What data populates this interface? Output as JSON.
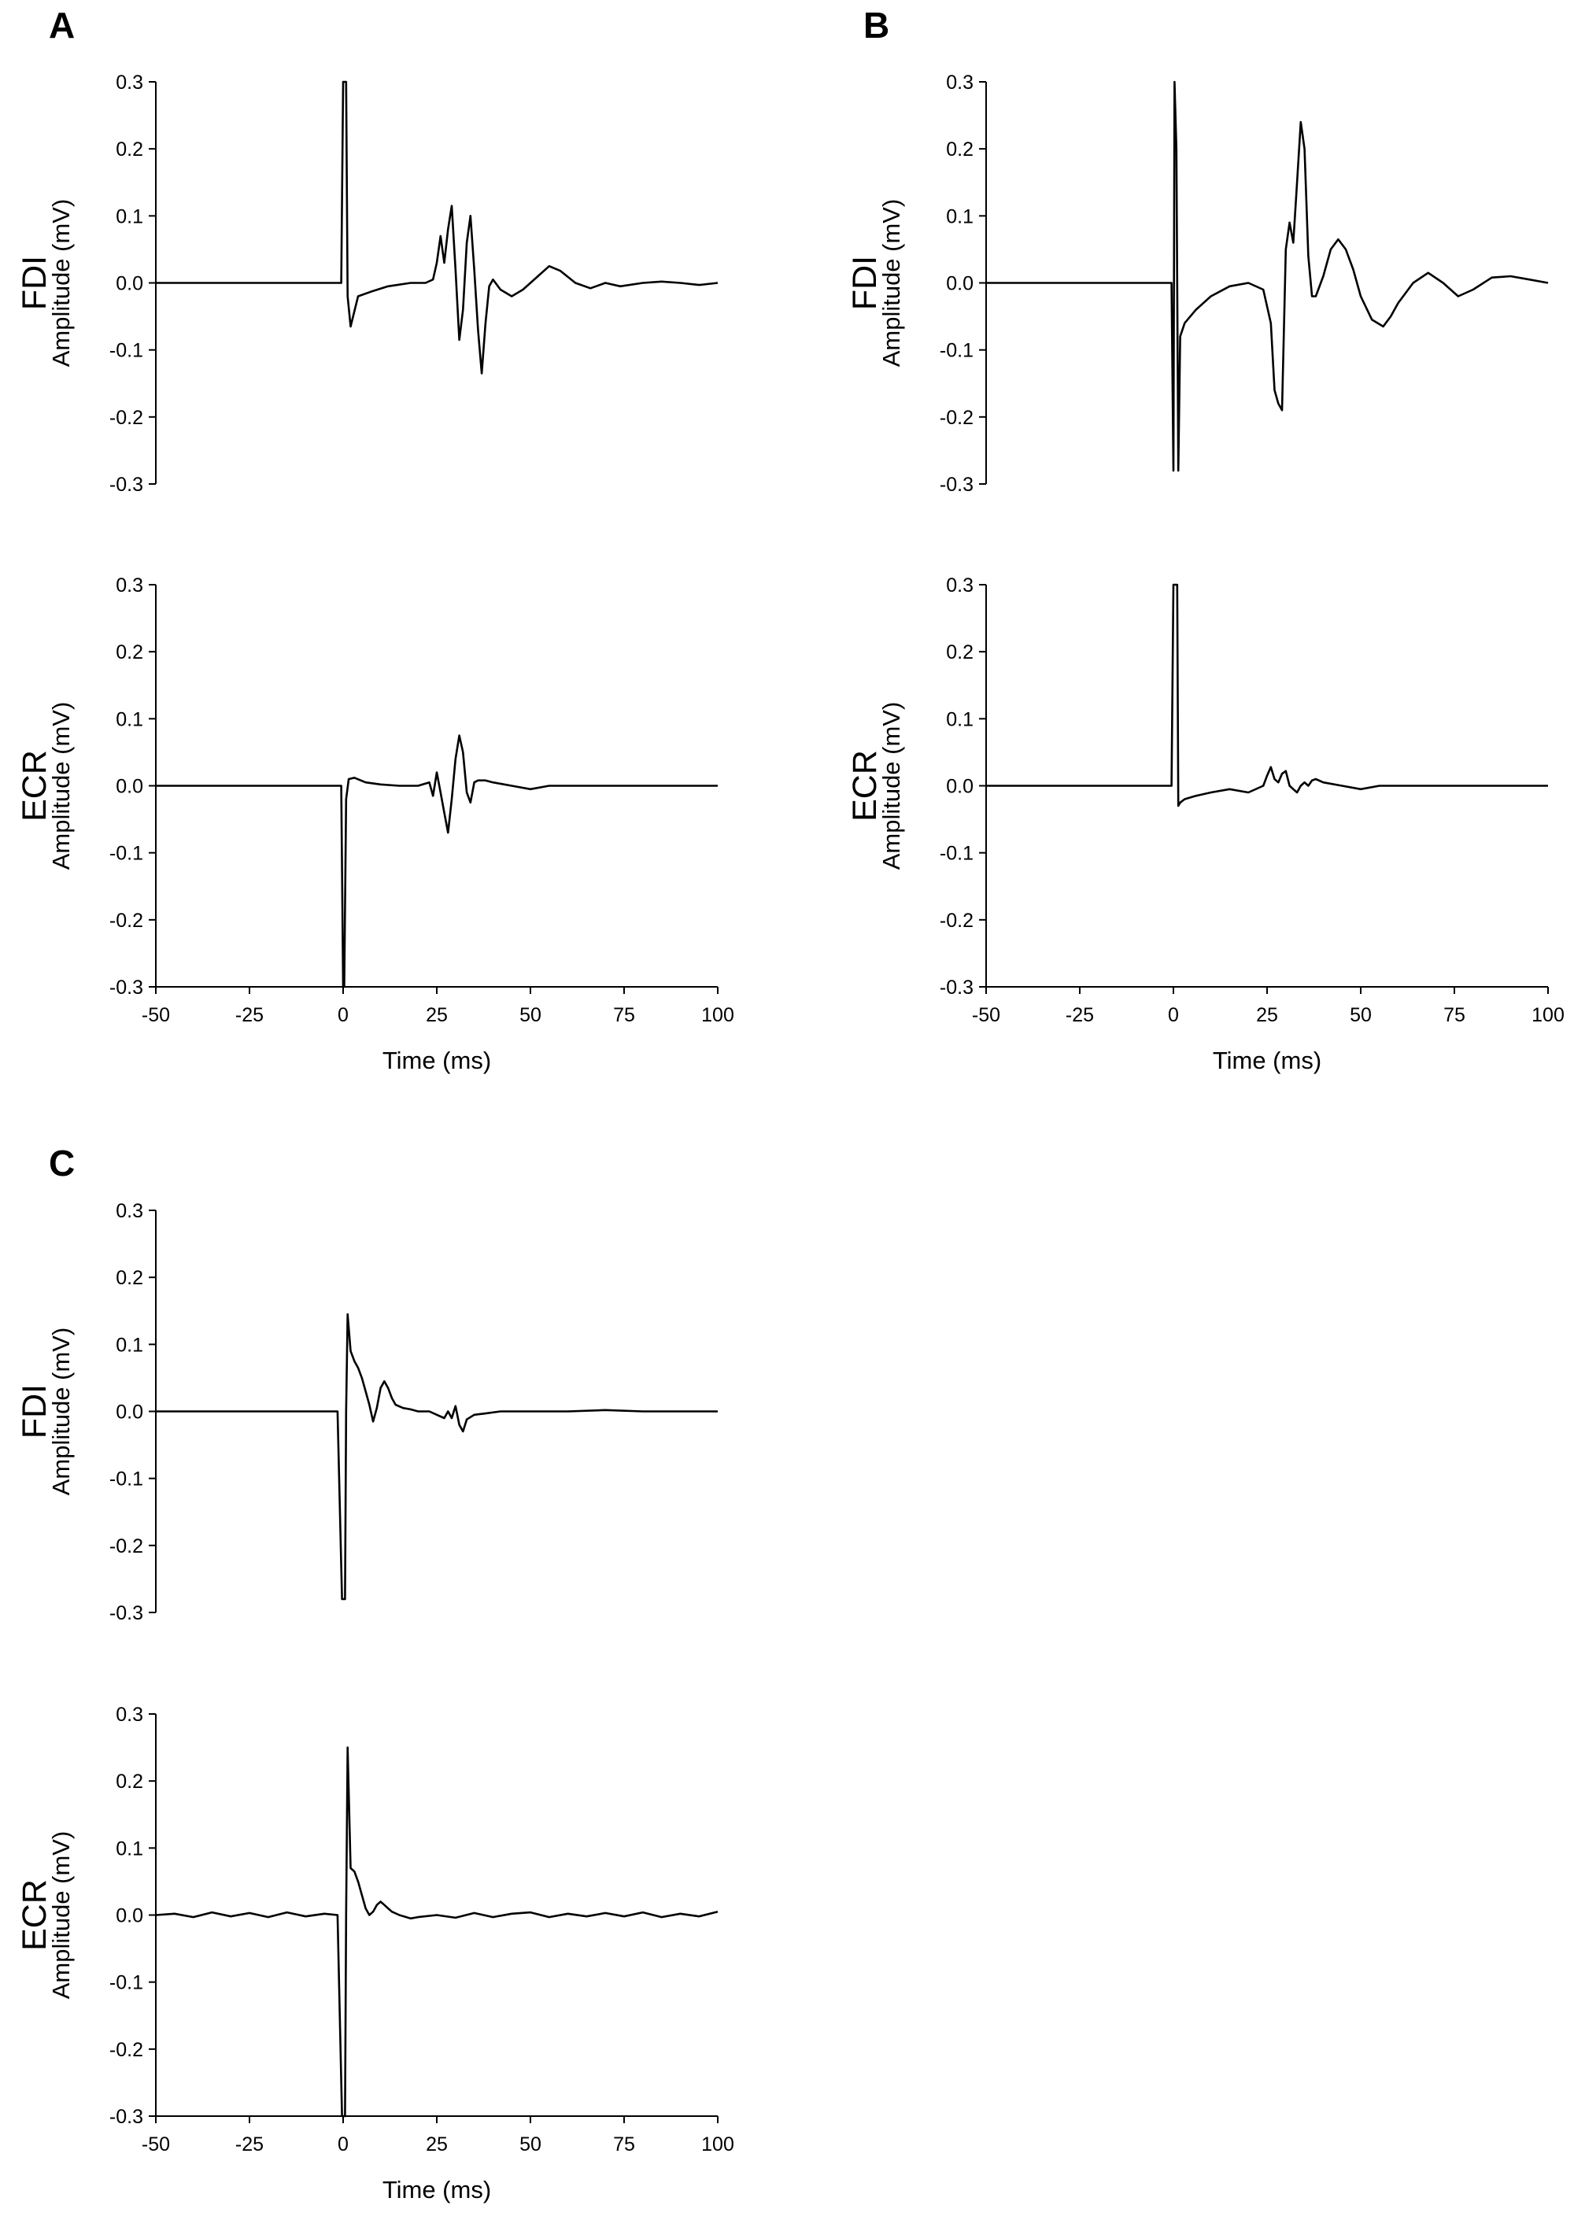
{
  "chart_data": [
    {
      "panel": "A",
      "muscle": "FDI",
      "type": "line",
      "ylabel": "Amplitude (mV)",
      "xlabel": "",
      "xlim": [
        -50,
        100
      ],
      "ylim": [
        -0.3,
        0.3
      ],
      "yticks": [
        "0.3",
        "0.2",
        "0.1",
        "0.0",
        "-0.1",
        "-0.2",
        "-0.3"
      ],
      "xticks": [],
      "x": [
        -50,
        -40,
        -30,
        -20,
        -10,
        -2,
        -0.5,
        0,
        0.3,
        0.8,
        1.2,
        2,
        4,
        8,
        12,
        18,
        22,
        24,
        25,
        26,
        27,
        28,
        29,
        30,
        31,
        32,
        33,
        34,
        35,
        36,
        37,
        38,
        39,
        40,
        42,
        45,
        48,
        52,
        55,
        58,
        62,
        66,
        70,
        74,
        80,
        85,
        90,
        95,
        100
      ],
      "y": [
        0.0,
        0.0,
        0.0,
        0.0,
        0.0,
        0.0,
        0.0,
        0.3,
        0.3,
        0.3,
        -0.02,
        -0.065,
        -0.02,
        -0.012,
        -0.005,
        0.0,
        0.0,
        0.005,
        0.03,
        0.07,
        0.03,
        0.08,
        0.115,
        0.02,
        -0.085,
        -0.04,
        0.06,
        0.1,
        0.02,
        -0.07,
        -0.135,
        -0.06,
        -0.005,
        0.005,
        -0.01,
        -0.02,
        -0.01,
        0.01,
        0.025,
        0.018,
        0.0,
        -0.008,
        0.0,
        -0.005,
        0.0,
        0.002,
        0.0,
        -0.003,
        0.0
      ]
    },
    {
      "panel": "A",
      "muscle": "ECR",
      "type": "line",
      "ylabel": "Amplitude (mV)",
      "xlabel": "Time (ms)",
      "xlim": [
        -50,
        100
      ],
      "ylim": [
        -0.3,
        0.3
      ],
      "yticks": [
        "0.3",
        "0.2",
        "0.1",
        "0.0",
        "-0.1",
        "-0.2",
        "-0.3"
      ],
      "xticks": [
        "-50",
        "-25",
        "0",
        "25",
        "50",
        "75",
        "100"
      ],
      "x": [
        -50,
        -40,
        -30,
        -20,
        -10,
        -2,
        -0.5,
        0,
        0.3,
        0.8,
        1.5,
        3,
        6,
        10,
        15,
        20,
        23,
        24,
        25,
        26,
        27,
        28,
        29,
        30,
        31,
        32,
        33,
        34,
        35,
        36,
        38,
        40,
        45,
        50,
        55,
        60,
        70,
        80,
        90,
        100
      ],
      "y": [
        0.0,
        0.0,
        0.0,
        0.0,
        0.0,
        0.0,
        0.0,
        -0.3,
        -0.3,
        -0.02,
        0.01,
        0.012,
        0.005,
        0.002,
        0.0,
        0.0,
        0.005,
        -0.015,
        0.02,
        -0.01,
        -0.04,
        -0.07,
        -0.02,
        0.04,
        0.075,
        0.05,
        -0.01,
        -0.025,
        0.005,
        0.008,
        0.008,
        0.005,
        0.0,
        -0.005,
        0.0,
        0.0,
        0.0,
        0.0,
        0.0,
        0.0
      ]
    },
    {
      "panel": "B",
      "muscle": "FDI",
      "type": "line",
      "ylabel": "Amplitude (mV)",
      "xlabel": "",
      "xlim": [
        -50,
        100
      ],
      "ylim": [
        -0.3,
        0.3
      ],
      "yticks": [
        "0.3",
        "0.2",
        "0.1",
        "0.0",
        "-0.1",
        "-0.2",
        "-0.3"
      ],
      "xticks": [],
      "x": [
        -50,
        -40,
        -30,
        -20,
        -10,
        -2,
        -0.5,
        0,
        0.3,
        0.8,
        1.3,
        1.8,
        3,
        6,
        10,
        15,
        20,
        24,
        26,
        27,
        28,
        29,
        30,
        31,
        32,
        33,
        34,
        35,
        36,
        37,
        38,
        40,
        42,
        44,
        46,
        48,
        50,
        53,
        56,
        58,
        60,
        64,
        68,
        72,
        76,
        80,
        85,
        90,
        95,
        100
      ],
      "y": [
        0.0,
        0.0,
        0.0,
        0.0,
        0.0,
        0.0,
        0.0,
        -0.28,
        0.3,
        0.2,
        -0.28,
        -0.08,
        -0.06,
        -0.04,
        -0.02,
        -0.005,
        0.0,
        -0.01,
        -0.06,
        -0.16,
        -0.18,
        -0.19,
        0.05,
        0.09,
        0.06,
        0.15,
        0.24,
        0.2,
        0.04,
        -0.02,
        -0.02,
        0.01,
        0.05,
        0.065,
        0.05,
        0.02,
        -0.02,
        -0.055,
        -0.065,
        -0.05,
        -0.03,
        0.0,
        0.015,
        0.0,
        -0.02,
        -0.01,
        0.008,
        0.01,
        0.005,
        0.0
      ]
    },
    {
      "panel": "B",
      "muscle": "ECR",
      "type": "line",
      "ylabel": "Amplitude (mV)",
      "xlabel": "Time (ms)",
      "xlim": [
        -50,
        100
      ],
      "ylim": [
        -0.3,
        0.3
      ],
      "yticks": [
        "0.3",
        "0.2",
        "0.1",
        "0.0",
        "-0.1",
        "-0.2",
        "-0.3"
      ],
      "xticks": [
        "-50",
        "-25",
        "0",
        "25",
        "50",
        "75",
        "100"
      ],
      "x": [
        -50,
        -40,
        -30,
        -20,
        -10,
        -2,
        -0.5,
        0,
        0.5,
        1,
        1.3,
        1.8,
        3,
        6,
        10,
        15,
        20,
        24,
        25,
        26,
        27,
        28,
        29,
        30,
        31,
        32,
        33,
        34,
        35,
        36,
        37,
        38,
        40,
        45,
        50,
        55,
        60,
        70,
        80,
        90,
        100
      ],
      "y": [
        0.0,
        0.0,
        0.0,
        0.0,
        0.0,
        0.0,
        0.0,
        0.3,
        0.3,
        0.3,
        -0.03,
        -0.025,
        -0.02,
        -0.015,
        -0.01,
        -0.005,
        -0.01,
        0.0,
        0.015,
        0.028,
        0.01,
        0.005,
        0.018,
        0.022,
        0.0,
        -0.005,
        -0.01,
        0.0,
        0.005,
        0.0,
        0.008,
        0.01,
        0.005,
        0.0,
        -0.005,
        0.0,
        0.0,
        0.0,
        0.0,
        0.0,
        0.0
      ]
    },
    {
      "panel": "C",
      "muscle": "FDI",
      "type": "line",
      "ylabel": "Amplitude (mV)",
      "xlabel": "",
      "xlim": [
        -50,
        100
      ],
      "ylim": [
        -0.3,
        0.3
      ],
      "yticks": [
        "0.3",
        "0.2",
        "0.1",
        "0.0",
        "-0.1",
        "-0.2",
        "-0.3"
      ],
      "xticks": [],
      "x": [
        -50,
        -40,
        -30,
        -20,
        -10,
        -1.5,
        -0.3,
        0,
        0.5,
        0.8,
        1.2,
        2,
        3,
        4,
        5,
        6,
        7,
        8,
        9,
        10,
        11,
        12,
        13,
        14,
        16,
        18,
        20,
        23,
        25,
        27,
        28,
        29,
        30,
        31,
        32,
        33,
        35,
        38,
        42,
        50,
        60,
        70,
        80,
        90,
        100
      ],
      "y": [
        0.0,
        0.0,
        0.0,
        0.0,
        0.0,
        0.0,
        -0.28,
        -0.28,
        -0.28,
        0.0,
        0.145,
        0.09,
        0.075,
        0.065,
        0.05,
        0.03,
        0.01,
        -0.015,
        0.005,
        0.035,
        0.045,
        0.035,
        0.02,
        0.01,
        0.005,
        0.003,
        0.0,
        0.0,
        -0.005,
        -0.01,
        0.0,
        -0.01,
        0.008,
        -0.02,
        -0.03,
        -0.012,
        -0.005,
        -0.003,
        0.0,
        0.0,
        0.0,
        0.002,
        0.0,
        0.0,
        0.0
      ]
    },
    {
      "panel": "C",
      "muscle": "ECR",
      "type": "line",
      "ylabel": "Amplitude (mV)",
      "xlabel": "Time (ms)",
      "xlim": [
        -50,
        100
      ],
      "ylim": [
        -0.3,
        0.3
      ],
      "yticks": [
        "0.3",
        "0.2",
        "0.1",
        "0.0",
        "-0.1",
        "-0.2",
        "-0.3"
      ],
      "xticks": [
        "-50",
        "-25",
        "0",
        "25",
        "50",
        "75",
        "100"
      ],
      "x": [
        -50,
        -45,
        -40,
        -35,
        -30,
        -25,
        -20,
        -15,
        -10,
        -5,
        -1.5,
        -0.3,
        0,
        0.5,
        0.8,
        1.2,
        2,
        3,
        4,
        5,
        6,
        7,
        8,
        9,
        10,
        11,
        12,
        13,
        15,
        18,
        20,
        25,
        30,
        35,
        40,
        45,
        50,
        55,
        60,
        65,
        70,
        75,
        80,
        85,
        90,
        95,
        100
      ],
      "y": [
        0.0,
        0.002,
        -0.003,
        0.004,
        -0.002,
        0.003,
        -0.003,
        0.004,
        -0.002,
        0.002,
        0.0,
        -0.3,
        -0.3,
        -0.3,
        0.0,
        0.25,
        0.07,
        0.065,
        0.05,
        0.03,
        0.01,
        0.0,
        0.005,
        0.015,
        0.02,
        0.015,
        0.01,
        0.005,
        0.0,
        -0.005,
        -0.003,
        0.0,
        -0.004,
        0.003,
        -0.003,
        0.002,
        0.004,
        -0.003,
        0.002,
        -0.002,
        0.003,
        -0.002,
        0.004,
        -0.003,
        0.002,
        -0.002,
        0.005
      ]
    }
  ]
}
